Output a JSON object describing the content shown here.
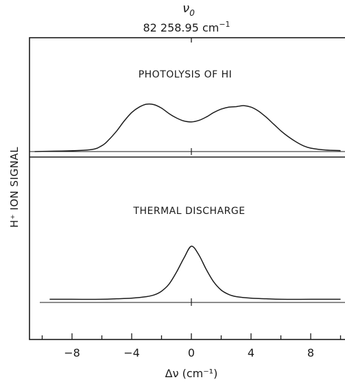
{
  "chart_data": [
    {
      "type": "line",
      "title": "PHOTOLYSIS OF HI",
      "xlim": [
        -10,
        10
      ],
      "series": [
        {
          "x": [
            -10.5,
            -7.0,
            -6.0,
            -5.5,
            -5.0,
            -4.5,
            -4.0,
            -3.5,
            -3.0,
            -2.5,
            -2.0,
            -1.5,
            -1.0,
            -0.5,
            0.0,
            0.5,
            1.0,
            1.5,
            2.0,
            2.5,
            3.0,
            3.5,
            4.0,
            4.5,
            5.0,
            5.5,
            6.0,
            6.5,
            7.0,
            7.5,
            8.0,
            9.0,
            10.0
          ],
          "y": [
            0.0,
            0.03,
            0.12,
            0.25,
            0.42,
            0.62,
            0.79,
            0.9,
            0.96,
            0.95,
            0.88,
            0.77,
            0.68,
            0.62,
            0.6,
            0.63,
            0.7,
            0.79,
            0.86,
            0.9,
            0.91,
            0.93,
            0.9,
            0.82,
            0.7,
            0.56,
            0.42,
            0.3,
            0.2,
            0.12,
            0.07,
            0.03,
            0.02
          ]
        }
      ]
    },
    {
      "type": "line",
      "title": "THERMAL DISCHARGE",
      "xlim": [
        -10,
        10
      ],
      "series": [
        {
          "x": [
            -9.5,
            -8.0,
            -6.0,
            -5.0,
            -4.0,
            -3.0,
            -2.5,
            -2.0,
            -1.5,
            -1.0,
            -0.5,
            0.0,
            0.5,
            1.0,
            1.5,
            2.0,
            2.5,
            3.0,
            4.0,
            5.0,
            6.0,
            8.0,
            10.0
          ],
          "y": [
            0.02,
            0.02,
            0.02,
            0.03,
            0.04,
            0.07,
            0.1,
            0.17,
            0.3,
            0.52,
            0.78,
            1.0,
            0.84,
            0.57,
            0.34,
            0.19,
            0.11,
            0.07,
            0.04,
            0.03,
            0.02,
            0.02,
            0.02
          ]
        }
      ]
    }
  ],
  "axes": {
    "xlabel": "Δν (cm⁻¹)",
    "ylabel": "H⁺ ION SIGNAL",
    "xticks": [
      -8,
      -4,
      0,
      4,
      8
    ],
    "tick_labels": [
      "−8",
      "−4",
      "0",
      "4",
      "8"
    ],
    "top_marker_symbol": "ν",
    "top_marker_sub": "0",
    "top_marker_value": "82 258.95 cm",
    "top_marker_sup": "−1"
  }
}
